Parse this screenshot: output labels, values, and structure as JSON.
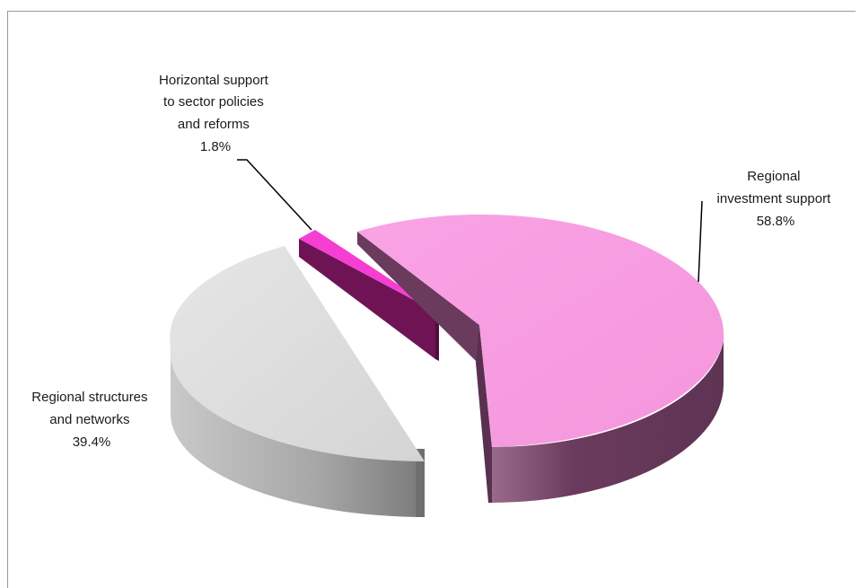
{
  "chart_data": {
    "type": "pie",
    "style": "3d-exploded",
    "slices": [
      {
        "label_lines": [
          "Regional",
          "investment support"
        ],
        "value": 58.8,
        "value_label": "58.8%",
        "top_color": "#f799e0",
        "side_color": "#6b3b5e"
      },
      {
        "label_lines": [
          "Regional structures",
          "and networks"
        ],
        "value": 39.4,
        "value_label": "39.4%",
        "top_color": "#d9d9d9",
        "side_color": "#9e9e9e"
      },
      {
        "label_lines": [
          "Horizontal support",
          "to sector policies",
          "and reforms"
        ],
        "value": 1.8,
        "value_label": "1.8%",
        "top_color": "#f53ed2",
        "side_color": "#6e1455"
      }
    ]
  }
}
